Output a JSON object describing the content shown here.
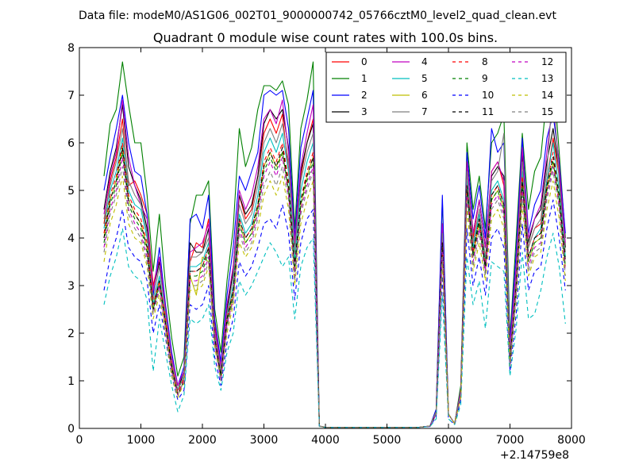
{
  "figure": {
    "suptitle": "Data file: modeM0/AS1G06_002T01_9000000742_05766cztM0_level2_quad_clean.evt"
  },
  "chart_data": {
    "type": "line",
    "title": "Quadrant 0 module wise count rates with 100.0s bins.",
    "xlabel": "",
    "ylabel": "",
    "x_offset_label": "+2.14759e8",
    "xlim": [
      0,
      8000
    ],
    "ylim": [
      0,
      8
    ],
    "xticks": [
      0,
      1000,
      2000,
      3000,
      4000,
      5000,
      6000,
      7000,
      8000
    ],
    "yticks": [
      0,
      1,
      2,
      3,
      4,
      5,
      6,
      7,
      8
    ],
    "grid": false,
    "legend_position": "top-right",
    "legend_columns": 4,
    "x": [
      400,
      500,
      600,
      700,
      800,
      900,
      1000,
      1100,
      1200,
      1300,
      1400,
      1500,
      1600,
      1700,
      1800,
      1900,
      2000,
      2100,
      2200,
      2300,
      2400,
      2500,
      2600,
      2700,
      2800,
      2900,
      3000,
      3100,
      3200,
      3300,
      3400,
      3500,
      3600,
      3700,
      3800,
      3900,
      4000,
      4500,
      5000,
      5500,
      5700,
      5800,
      5900,
      6000,
      6100,
      6200,
      6300,
      6400,
      6500,
      6600,
      6700,
      6800,
      6900,
      7000,
      7100,
      7200,
      7300,
      7400,
      7500,
      7600,
      7700,
      7800,
      7900
    ],
    "series": [
      {
        "name": "0",
        "color": "#ff0000",
        "dash": "solid",
        "values": [
          4.3,
          5.2,
          5.7,
          6.5,
          5.1,
          5.2,
          4.9,
          4.5,
          3.0,
          3.6,
          2.5,
          1.5,
          0.9,
          1.2,
          3.5,
          3.9,
          3.8,
          4.4,
          2.2,
          1.3,
          2.5,
          3.4,
          4.9,
          4.4,
          4.6,
          5.3,
          6.2,
          6.5,
          6.2,
          6.6,
          5.4,
          3.9,
          5.3,
          6.0,
          6.5,
          0.05,
          0.02,
          0.02,
          0.02,
          0.02,
          0.05,
          0.35,
          4.2,
          0.3,
          0.1,
          0.8,
          5.6,
          4.0,
          4.8,
          3.8,
          5.4,
          5.6,
          5.1,
          1.6,
          3.4,
          5.7,
          3.8,
          4.2,
          4.3,
          5.2,
          6.1,
          5.3,
          3.8
        ]
      },
      {
        "name": "1",
        "color": "#008000",
        "dash": "solid",
        "values": [
          5.3,
          6.4,
          6.7,
          7.7,
          6.8,
          6.0,
          6.0,
          4.9,
          3.3,
          4.5,
          3.0,
          1.9,
          1.1,
          1.5,
          4.3,
          4.9,
          4.9,
          5.2,
          2.5,
          1.6,
          3.1,
          4.2,
          6.3,
          5.5,
          5.9,
          6.7,
          7.2,
          7.2,
          7.1,
          7.3,
          6.8,
          4.2,
          6.3,
          6.9,
          7.7,
          0.05,
          0.02,
          0.02,
          0.02,
          0.02,
          0.05,
          0.4,
          4.8,
          0.3,
          0.1,
          0.9,
          6.0,
          4.6,
          5.3,
          4.2,
          6.0,
          6.2,
          6.6,
          1.9,
          4.0,
          6.2,
          4.6,
          5.4,
          5.7,
          7.0,
          7.5,
          5.8,
          4.0
        ]
      },
      {
        "name": "2",
        "color": "#0000ff",
        "dash": "solid",
        "values": [
          5.0,
          5.7,
          6.3,
          7.0,
          6.0,
          5.4,
          5.3,
          4.5,
          2.8,
          3.8,
          2.6,
          1.6,
          0.9,
          1.3,
          4.4,
          4.5,
          4.2,
          4.9,
          2.3,
          1.4,
          2.8,
          3.8,
          5.3,
          5.0,
          5.4,
          5.8,
          7.0,
          7.1,
          7.0,
          7.1,
          6.3,
          4.0,
          5.9,
          6.5,
          7.1,
          0.05,
          0.02,
          0.02,
          0.02,
          0.02,
          0.05,
          0.4,
          4.9,
          0.3,
          0.1,
          0.8,
          5.8,
          4.4,
          5.1,
          4.0,
          6.3,
          5.8,
          6.0,
          1.8,
          3.7,
          6.1,
          4.1,
          4.7,
          5.0,
          6.1,
          6.6,
          5.6,
          4.1
        ]
      },
      {
        "name": "3",
        "color": "#000000",
        "dash": "solid",
        "values": [
          4.6,
          5.4,
          5.9,
          6.8,
          5.5,
          5.1,
          4.8,
          4.2,
          2.9,
          3.5,
          2.5,
          1.4,
          0.8,
          1.2,
          3.9,
          3.7,
          3.7,
          4.2,
          2.1,
          1.2,
          2.5,
          3.3,
          4.9,
          4.5,
          4.7,
          5.3,
          6.4,
          6.7,
          6.5,
          6.7,
          5.9,
          3.8,
          5.4,
          6.0,
          6.4,
          0.05,
          0.02,
          0.02,
          0.02,
          0.02,
          0.05,
          0.35,
          4.3,
          0.3,
          0.1,
          0.8,
          5.6,
          4.1,
          4.8,
          3.8,
          5.3,
          5.5,
          5.3,
          1.6,
          3.3,
          5.8,
          3.9,
          4.4,
          4.6,
          5.6,
          6.3,
          5.4,
          3.8
        ]
      },
      {
        "name": "4",
        "color": "#c000c0",
        "dash": "solid",
        "values": [
          4.5,
          5.3,
          5.8,
          6.9,
          5.7,
          5.1,
          4.7,
          4.4,
          2.9,
          3.6,
          2.5,
          1.5,
          0.9,
          1.2,
          3.7,
          3.8,
          3.9,
          4.3,
          2.1,
          1.3,
          2.6,
          3.4,
          5.0,
          4.6,
          4.9,
          5.5,
          6.5,
          6.7,
          6.4,
          6.9,
          5.8,
          3.9,
          5.5,
          6.2,
          6.8,
          0.05,
          0.02,
          0.02,
          0.02,
          0.02,
          0.05,
          0.35,
          4.3,
          0.3,
          0.1,
          0.8,
          5.6,
          4.1,
          4.8,
          3.8,
          5.4,
          5.6,
          5.2,
          1.7,
          3.4,
          5.9,
          4.0,
          4.4,
          4.7,
          5.8,
          6.9,
          5.5,
          3.9
        ]
      },
      {
        "name": "5",
        "color": "#00bfbf",
        "dash": "solid",
        "values": [
          4.2,
          5.0,
          5.4,
          6.1,
          5.0,
          4.7,
          4.6,
          4.0,
          2.6,
          3.2,
          2.3,
          1.3,
          0.8,
          1.1,
          3.4,
          3.4,
          3.5,
          3.9,
          1.9,
          1.2,
          2.3,
          3.0,
          4.5,
          4.1,
          4.3,
          4.9,
          5.8,
          6.1,
          5.8,
          6.2,
          5.4,
          3.5,
          5.0,
          5.6,
          6.0,
          0.05,
          0.02,
          0.02,
          0.02,
          0.02,
          0.05,
          0.3,
          4.0,
          0.3,
          0.1,
          0.7,
          5.2,
          3.8,
          4.5,
          3.5,
          5.0,
          5.2,
          4.8,
          1.5,
          3.1,
          5.4,
          3.6,
          4.0,
          4.2,
          5.2,
          6.0,
          5.0,
          3.6
        ]
      },
      {
        "name": "6",
        "color": "#bfbf00",
        "dash": "solid",
        "values": [
          4.0,
          4.8,
          5.2,
          5.9,
          4.8,
          4.5,
          4.3,
          3.8,
          2.5,
          3.1,
          2.2,
          1.3,
          0.7,
          1.0,
          3.2,
          2.8,
          3.6,
          3.5,
          1.8,
          1.1,
          2.2,
          2.8,
          4.3,
          3.9,
          4.1,
          4.6,
          5.5,
          5.8,
          5.5,
          5.8,
          5.0,
          3.3,
          4.7,
          5.3,
          5.7,
          0.05,
          0.02,
          0.02,
          0.02,
          0.02,
          0.05,
          0.3,
          3.8,
          0.3,
          0.1,
          0.7,
          5.0,
          3.6,
          4.3,
          3.4,
          4.8,
          5.0,
          4.6,
          1.4,
          3.0,
          5.2,
          3.5,
          3.9,
          4.0,
          5.0,
          5.6,
          4.8,
          3.4
        ]
      },
      {
        "name": "7",
        "color": "#808080",
        "dash": "solid",
        "values": [
          4.4,
          5.1,
          5.6,
          6.3,
          5.2,
          4.9,
          4.7,
          4.1,
          2.7,
          3.4,
          2.4,
          1.4,
          0.8,
          1.1,
          3.6,
          3.6,
          3.7,
          4.0,
          2.0,
          1.2,
          2.4,
          3.2,
          4.7,
          4.3,
          4.5,
          5.1,
          6.0,
          6.3,
          6.0,
          6.4,
          5.6,
          3.7,
          5.2,
          5.8,
          6.2,
          0.05,
          0.02,
          0.02,
          0.02,
          0.02,
          0.05,
          0.35,
          4.1,
          0.3,
          0.1,
          0.75,
          5.4,
          3.9,
          4.6,
          3.6,
          5.2,
          5.4,
          6.2,
          1.5,
          3.2,
          5.6,
          3.8,
          4.2,
          4.4,
          5.4,
          7.2,
          5.2,
          3.7
        ]
      },
      {
        "name": "8",
        "color": "#ff0000",
        "dash": "dashed",
        "values": [
          4.1,
          4.9,
          5.3,
          6.0,
          4.9,
          4.6,
          4.4,
          3.9,
          2.6,
          3.1,
          2.3,
          1.3,
          0.75,
          1.05,
          3.3,
          3.3,
          3.4,
          3.8,
          1.9,
          1.1,
          2.3,
          2.9,
          4.4,
          4.0,
          4.2,
          4.7,
          5.6,
          5.9,
          5.6,
          6.0,
          5.2,
          3.4,
          4.8,
          5.4,
          5.8,
          0.05,
          0.02,
          0.02,
          0.02,
          0.02,
          0.05,
          0.3,
          3.9,
          0.3,
          0.1,
          0.7,
          5.1,
          3.7,
          4.4,
          3.4,
          4.9,
          5.1,
          4.7,
          1.4,
          3.0,
          5.3,
          3.6,
          4.0,
          4.1,
          5.1,
          5.8,
          4.9,
          3.5
        ]
      },
      {
        "name": "9",
        "color": "#008000",
        "dash": "dashed",
        "values": [
          3.9,
          4.7,
          5.1,
          5.8,
          4.7,
          4.4,
          4.2,
          3.7,
          2.5,
          3.0,
          2.2,
          1.2,
          0.7,
          1.0,
          3.2,
          3.2,
          3.3,
          3.7,
          1.8,
          1.1,
          2.2,
          2.8,
          4.3,
          3.9,
          4.1,
          4.6,
          5.4,
          5.7,
          5.4,
          5.8,
          5.0,
          3.3,
          4.7,
          5.2,
          5.6,
          0.05,
          0.02,
          0.02,
          0.02,
          0.02,
          0.05,
          0.3,
          3.8,
          0.3,
          0.1,
          0.7,
          5.0,
          3.6,
          4.3,
          3.3,
          4.8,
          5.0,
          4.6,
          1.4,
          2.9,
          5.1,
          3.5,
          3.9,
          4.0,
          5.0,
          5.6,
          4.8,
          3.4
        ]
      },
      {
        "name": "10",
        "color": "#0000ff",
        "dash": "dashed",
        "values": [
          2.9,
          3.6,
          4.0,
          4.6,
          3.8,
          3.6,
          3.5,
          3.1,
          2.0,
          2.6,
          1.9,
          1.1,
          0.6,
          0.8,
          2.6,
          2.5,
          2.6,
          3.0,
          1.5,
          0.9,
          1.8,
          2.3,
          3.5,
          3.2,
          3.4,
          3.8,
          4.3,
          4.4,
          4.2,
          4.7,
          4.1,
          2.7,
          3.9,
          4.4,
          4.6,
          0.05,
          0.02,
          0.02,
          0.02,
          0.02,
          0.04,
          0.25,
          3.2,
          0.2,
          0.08,
          0.6,
          4.2,
          3.0,
          3.6,
          2.8,
          4.0,
          4.2,
          3.8,
          1.2,
          2.4,
          4.3,
          2.9,
          3.3,
          3.4,
          4.2,
          4.8,
          4.0,
          2.9
        ]
      },
      {
        "name": "11",
        "color": "#000000",
        "dash": "dashed",
        "values": [
          4.0,
          4.8,
          5.2,
          5.9,
          4.8,
          4.5,
          4.3,
          3.8,
          2.5,
          3.1,
          2.2,
          1.3,
          0.7,
          1.0,
          3.3,
          3.3,
          3.4,
          3.8,
          1.9,
          1.1,
          2.3,
          2.9,
          4.4,
          4.0,
          4.2,
          4.7,
          5.5,
          5.8,
          5.5,
          5.9,
          5.1,
          3.4,
          4.8,
          5.3,
          5.7,
          0.05,
          0.02,
          0.02,
          0.02,
          0.02,
          0.05,
          0.3,
          3.9,
          0.3,
          0.1,
          0.7,
          5.1,
          3.7,
          4.4,
          3.4,
          4.9,
          5.1,
          4.7,
          1.4,
          3.0,
          5.2,
          3.6,
          4.0,
          4.1,
          5.1,
          5.7,
          4.9,
          3.5
        ]
      },
      {
        "name": "12",
        "color": "#c000c0",
        "dash": "dashed",
        "values": [
          3.8,
          4.6,
          5.0,
          5.7,
          4.6,
          4.3,
          4.1,
          3.6,
          2.4,
          3.0,
          2.1,
          1.2,
          0.7,
          1.0,
          3.1,
          3.1,
          3.2,
          3.6,
          1.8,
          1.0,
          2.2,
          2.7,
          4.2,
          3.8,
          4.0,
          4.5,
          5.3,
          5.6,
          5.3,
          5.7,
          4.9,
          3.2,
          4.6,
          5.1,
          5.5,
          0.05,
          0.02,
          0.02,
          0.02,
          0.02,
          0.05,
          0.3,
          3.7,
          0.3,
          0.1,
          0.7,
          4.9,
          3.5,
          4.2,
          3.3,
          4.7,
          4.9,
          4.5,
          1.3,
          2.9,
          5.0,
          3.4,
          3.8,
          3.9,
          4.9,
          5.5,
          4.7,
          3.3
        ]
      },
      {
        "name": "13",
        "color": "#00bfbf",
        "dash": "dashed",
        "values": [
          2.6,
          3.2,
          3.6,
          4.2,
          3.4,
          3.2,
          3.1,
          2.7,
          1.2,
          2.3,
          1.6,
          0.9,
          0.35,
          0.7,
          2.3,
          2.2,
          2.3,
          2.6,
          1.3,
          0.8,
          1.6,
          2.0,
          3.1,
          2.8,
          3.0,
          3.3,
          3.6,
          3.9,
          3.7,
          3.4,
          3.6,
          2.3,
          3.4,
          3.8,
          4.0,
          0.04,
          0.02,
          0.02,
          0.02,
          0.02,
          0.04,
          0.2,
          2.8,
          0.2,
          0.08,
          0.5,
          3.6,
          2.6,
          3.1,
          2.1,
          3.5,
          3.4,
          3.3,
          1.1,
          2.1,
          3.7,
          2.3,
          2.4,
          2.9,
          3.6,
          4.1,
          3.4,
          2.2
        ]
      },
      {
        "name": "14",
        "color": "#bfbf00",
        "dash": "dashed",
        "values": [
          3.5,
          4.3,
          4.7,
          5.3,
          4.3,
          4.0,
          3.9,
          3.4,
          2.3,
          2.8,
          2.0,
          1.1,
          0.65,
          0.95,
          2.9,
          2.9,
          3.0,
          3.4,
          1.7,
          1.0,
          2.0,
          2.6,
          3.9,
          3.6,
          3.8,
          4.2,
          4.9,
          5.2,
          4.9,
          5.3,
          4.6,
          3.0,
          4.3,
          4.8,
          5.2,
          0.05,
          0.02,
          0.02,
          0.02,
          0.02,
          0.05,
          0.3,
          3.5,
          0.3,
          0.1,
          0.65,
          4.6,
          3.3,
          3.9,
          3.1,
          4.4,
          4.6,
          4.2,
          1.3,
          2.7,
          4.7,
          3.2,
          3.6,
          3.7,
          4.6,
          5.2,
          4.4,
          3.1
        ]
      },
      {
        "name": "15",
        "color": "#808080",
        "dash": "dashed",
        "values": [
          3.7,
          4.5,
          4.9,
          5.5,
          4.5,
          4.2,
          4.0,
          3.5,
          2.4,
          2.9,
          2.1,
          1.2,
          0.7,
          1.0,
          3.0,
          3.0,
          3.1,
          3.5,
          1.8,
          1.0,
          2.1,
          2.7,
          4.1,
          3.7,
          3.9,
          4.4,
          5.1,
          5.4,
          5.1,
          5.5,
          4.8,
          3.1,
          4.5,
          5.0,
          5.4,
          0.05,
          0.02,
          0.02,
          0.02,
          0.02,
          0.05,
          0.3,
          3.6,
          0.3,
          0.1,
          0.7,
          4.8,
          3.4,
          4.1,
          3.2,
          4.6,
          4.8,
          4.4,
          1.3,
          2.8,
          4.9,
          3.3,
          3.7,
          3.8,
          4.8,
          5.4,
          4.6,
          3.2
        ]
      }
    ]
  }
}
